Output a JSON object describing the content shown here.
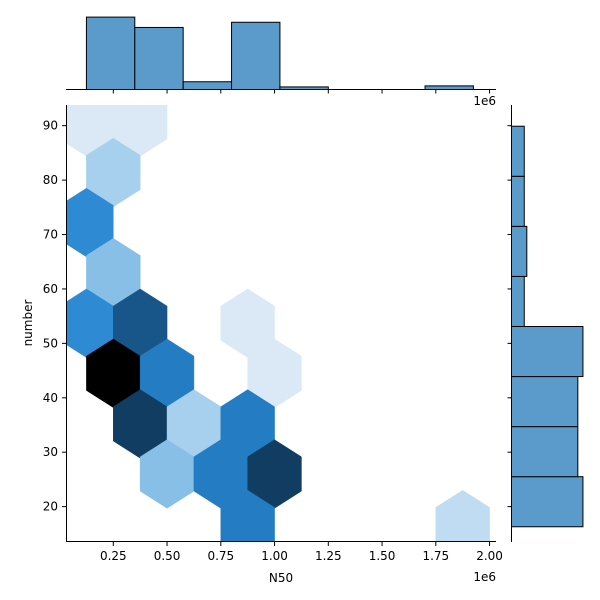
{
  "chart_data": {
    "type": "joint-hexbin",
    "xlabel": "N50",
    "ylabel": "number",
    "x_offset_label": "1e6",
    "xlim": [
      0.03,
      2.03
    ],
    "ylim": [
      13.5,
      93.8
    ],
    "x_ticks": [
      "0.25",
      "0.50",
      "0.75",
      "1.00",
      "1.25",
      "1.50",
      "1.75",
      "2.00"
    ],
    "y_ticks": [
      "20",
      "30",
      "40",
      "50",
      "60",
      "70",
      "80",
      "90"
    ],
    "x_tick_values": [
      0.25,
      0.5,
      0.75,
      1.0,
      1.25,
      1.5,
      1.75,
      2.0
    ],
    "y_tick_values": [
      20,
      30,
      40,
      50,
      60,
      70,
      80,
      90
    ],
    "hex_radius_y": 6.3,
    "hex_halfwidth_x": 0.125,
    "hexbins": [
      {
        "x": 0.125,
        "y": 90.7,
        "count": 1
      },
      {
        "x": 0.375,
        "y": 90.7,
        "count": 1
      },
      {
        "x": 0.25,
        "y": 81.4,
        "count": 3
      },
      {
        "x": 0.125,
        "y": 72.2,
        "count": 6
      },
      {
        "x": 0.25,
        "y": 63.0,
        "count": 4
      },
      {
        "x": 0.125,
        "y": 53.7,
        "count": 6
      },
      {
        "x": 0.375,
        "y": 53.7,
        "count": 9
      },
      {
        "x": 0.875,
        "y": 53.7,
        "count": 1
      },
      {
        "x": 0.25,
        "y": 44.5,
        "count": 12
      },
      {
        "x": 0.5,
        "y": 44.5,
        "count": 7
      },
      {
        "x": 1.0,
        "y": 44.5,
        "count": 1
      },
      {
        "x": 0.375,
        "y": 35.2,
        "count": 10
      },
      {
        "x": 0.625,
        "y": 35.2,
        "count": 3
      },
      {
        "x": 0.875,
        "y": 35.2,
        "count": 7
      },
      {
        "x": 0.5,
        "y": 26.0,
        "count": 4
      },
      {
        "x": 0.75,
        "y": 26.0,
        "count": 7
      },
      {
        "x": 1.0,
        "y": 26.0,
        "count": 10
      },
      {
        "x": 0.875,
        "y": 16.7,
        "count": 7
      },
      {
        "x": 1.875,
        "y": 16.7,
        "count": 2
      }
    ],
    "count_max": 12,
    "x_marginal": {
      "bins": [
        {
          "x0": 0.125,
          "x1": 0.35,
          "count": 14
        },
        {
          "x0": 0.35,
          "x1": 0.575,
          "count": 12
        },
        {
          "x0": 0.575,
          "x1": 0.8,
          "count": 1.5
        },
        {
          "x0": 0.8,
          "x1": 1.025,
          "count": 13
        },
        {
          "x0": 1.025,
          "x1": 1.25,
          "count": 0.5
        },
        {
          "x0": 1.25,
          "x1": 1.475,
          "count": 0
        },
        {
          "x0": 1.475,
          "x1": 1.7,
          "count": 0
        },
        {
          "x0": 1.7,
          "x1": 1.925,
          "count": 0.7
        }
      ],
      "max": 14.6
    },
    "y_marginal": {
      "bins": [
        {
          "y0": 16.3,
          "y1": 25.5,
          "count": 14
        },
        {
          "y0": 25.5,
          "y1": 34.7,
          "count": 13
        },
        {
          "y0": 34.7,
          "y1": 43.9,
          "count": 13
        },
        {
          "y0": 43.9,
          "y1": 53.1,
          "count": 14
        },
        {
          "y0": 53.1,
          "y1": 62.3,
          "count": 2.5
        },
        {
          "y0": 62.3,
          "y1": 71.5,
          "count": 3
        },
        {
          "y0": 71.5,
          "y1": 80.7,
          "count": 2.5
        },
        {
          "y0": 80.7,
          "y1": 89.9,
          "count": 2.5
        }
      ],
      "max": 14.6
    },
    "colors": {
      "bar_fill": "#5a9bcb",
      "bar_edge": "#000000",
      "hex_low": "#dbe9f6",
      "hex_mid": "#2e8bd3",
      "hex_high": "#000000"
    }
  }
}
